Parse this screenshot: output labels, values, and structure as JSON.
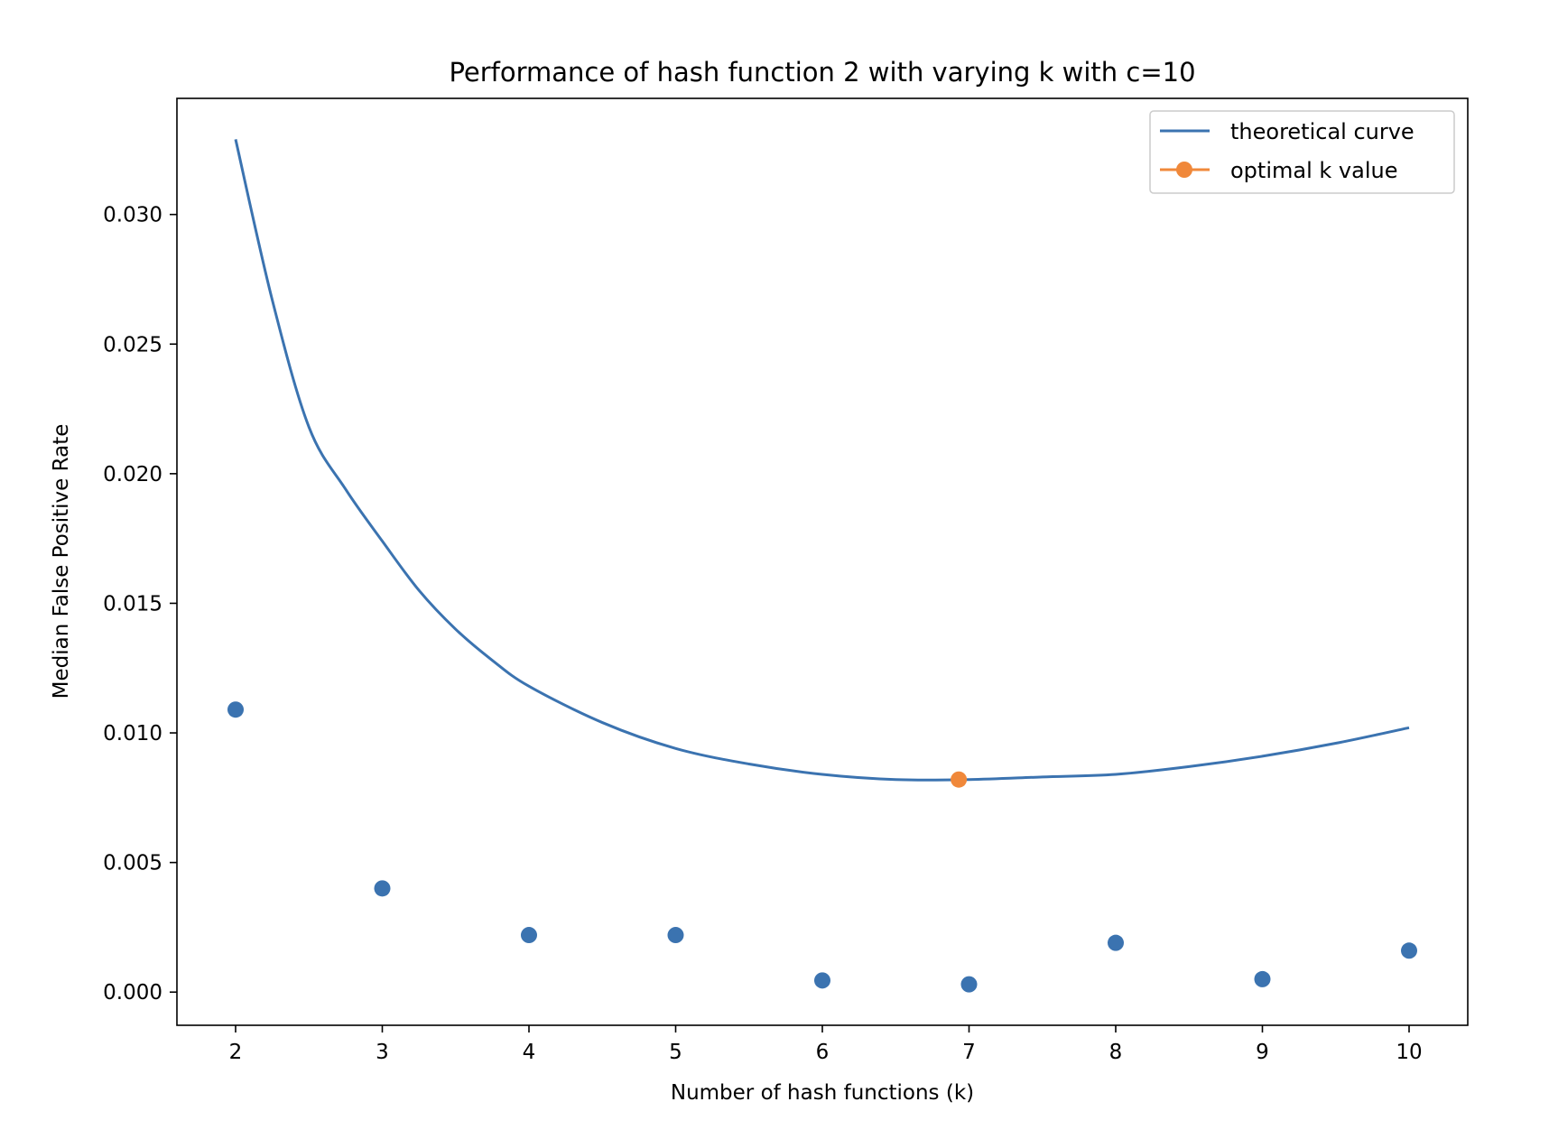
{
  "chart_data": {
    "type": "scatter",
    "title": "Performance of hash function 2 with varying k with c=10",
    "xlabel": "Number of hash functions (k)",
    "ylabel": "Median False Positive Rate",
    "xlim": [
      1.6,
      10.4
    ],
    "ylim": [
      -0.00128,
      0.03448
    ],
    "xticks": [
      2,
      3,
      4,
      5,
      6,
      7,
      8,
      9,
      10
    ],
    "yticks": [
      0.0,
      0.005,
      0.01,
      0.015,
      0.02,
      0.025,
      0.03
    ],
    "ytick_labels": [
      "0.000",
      "0.005",
      "0.010",
      "0.015",
      "0.020",
      "0.025",
      "0.030"
    ],
    "grid": false,
    "legend_position": "top-right",
    "colors": {
      "curve": "#3b73b0",
      "optimal": "#f0883a",
      "points": "#3b73b0",
      "axes": "#000000"
    },
    "series": [
      {
        "name": "theoretical curve",
        "kind": "line",
        "x": [
          2,
          2.25,
          2.5,
          2.75,
          3,
          3.25,
          3.5,
          3.75,
          4,
          4.5,
          5,
          5.5,
          6,
          6.5,
          7,
          7.5,
          8,
          8.5,
          9,
          9.5,
          10
        ],
        "y": [
          0.0329,
          0.0267,
          0.0218,
          0.0194,
          0.0174,
          0.0155,
          0.014,
          0.0128,
          0.0118,
          0.0104,
          0.0094,
          0.0088,
          0.0084,
          0.0082,
          0.0082,
          0.0083,
          0.0084,
          0.0087,
          0.0091,
          0.0096,
          0.0102
        ]
      },
      {
        "name": "optimal k value",
        "kind": "marker",
        "x": [
          6.93
        ],
        "y": [
          0.0082
        ]
      },
      {
        "kind": "scatter",
        "x": [
          2,
          3,
          4,
          5,
          6,
          7,
          8,
          9,
          10
        ],
        "y": [
          0.0109,
          0.004,
          0.0022,
          0.0022,
          0.00045,
          0.0003,
          0.0019,
          0.0005,
          0.0016
        ]
      }
    ]
  }
}
